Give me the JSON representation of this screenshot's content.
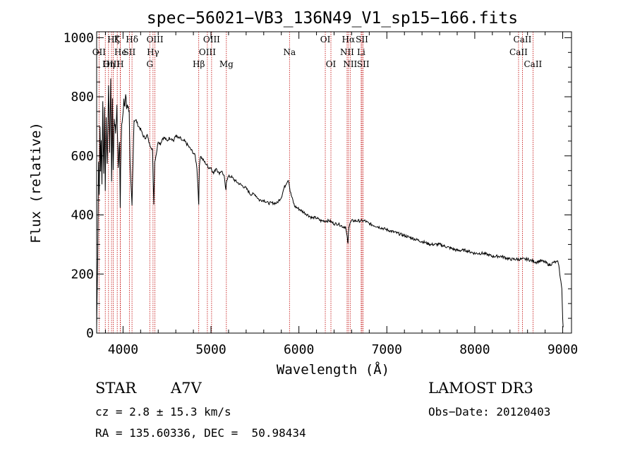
{
  "chart_data": {
    "type": "line",
    "title": "spec−56021−VB3_136N49_V1_sp15−166.fits",
    "xlabel": "Wavelength (Å)",
    "ylabel": "Flux (relative)",
    "xlim": [
      3700,
      9100
    ],
    "ylim": [
      0,
      1020
    ],
    "x_ticks": [
      4000,
      5000,
      6000,
      7000,
      8000,
      9000
    ],
    "y_ticks": [
      0,
      200,
      400,
      600,
      800,
      1000
    ],
    "series": [
      {
        "name": "flux",
        "x": [
          3700,
          3712,
          3722,
          3730,
          3738,
          3745,
          3752,
          3760,
          3770,
          3780,
          3790,
          3798,
          3808,
          3820,
          3835,
          3848,
          3860,
          3870,
          3880,
          3888,
          3900,
          3915,
          3930,
          3945,
          3960,
          3968,
          3972,
          3985,
          4000,
          4010,
          4020,
          4030,
          4040,
          4050,
          4060,
          4070,
          4080,
          4092,
          4102,
          4110,
          4125,
          4150,
          4175,
          4200,
          4225,
          4250,
          4275,
          4300,
          4320,
          4335,
          4342,
          4350,
          4360,
          4380,
          4400,
          4425,
          4450,
          4475,
          4500,
          4525,
          4550,
          4575,
          4600,
          4625,
          4650,
          4675,
          4700,
          4725,
          4750,
          4775,
          4800,
          4820,
          4840,
          4855,
          4861,
          4868,
          4880,
          4900,
          4925,
          4950,
          4975,
          5000,
          5030,
          5060,
          5090,
          5120,
          5150,
          5170,
          5175,
          5180,
          5200,
          5230,
          5260,
          5300,
          5350,
          5400,
          5450,
          5500,
          5550,
          5600,
          5650,
          5700,
          5750,
          5800,
          5830,
          5860,
          5880,
          5893,
          5900,
          5920,
          5950,
          6000,
          6050,
          6100,
          6150,
          6200,
          6250,
          6300,
          6350,
          6400,
          6450,
          6500,
          6530,
          6550,
          6558,
          6563,
          6568,
          6580,
          6600,
          6650,
          6700,
          6750,
          6800,
          6900,
          7000,
          7100,
          7200,
          7300,
          7400,
          7500,
          7600,
          7700,
          7800,
          7900,
          8000,
          8100,
          8200,
          8300,
          8400,
          8500,
          8550,
          8600,
          8650,
          8700,
          8750,
          8800,
          8850,
          8900,
          8950,
          8990,
          9000,
          9005
        ],
        "values": [
          20,
          250,
          580,
          480,
          700,
          560,
          650,
          510,
          780,
          540,
          760,
          480,
          740,
          560,
          840,
          620,
          860,
          520,
          780,
          560,
          730,
          680,
          760,
          560,
          650,
          420,
          560,
          720,
          740,
          780,
          770,
          810,
          760,
          780,
          760,
          760,
          560,
          480,
          430,
          540,
          720,
          720,
          700,
          690,
          670,
          660,
          670,
          640,
          630,
          620,
          520,
          440,
          580,
          610,
          650,
          640,
          660,
          660,
          650,
          660,
          660,
          650,
          670,
          660,
          660,
          650,
          650,
          640,
          630,
          620,
          610,
          600,
          560,
          480,
          430,
          570,
          600,
          590,
          580,
          570,
          560,
          560,
          540,
          560,
          540,
          550,
          530,
          480,
          510,
          520,
          530,
          530,
          520,
          510,
          500,
          490,
          470,
          470,
          450,
          450,
          440,
          440,
          440,
          460,
          490,
          510,
          520,
          500,
          480,
          460,
          430,
          420,
          410,
          400,
          390,
          390,
          380,
          380,
          380,
          370,
          370,
          360,
          360,
          320,
          300,
          340,
          360,
          370,
          380,
          380,
          380,
          380,
          370,
          360,
          350,
          340,
          330,
          320,
          310,
          300,
          300,
          290,
          280,
          280,
          270,
          270,
          260,
          260,
          250,
          250,
          250,
          250,
          245,
          240,
          245,
          240,
          230,
          240,
          240,
          150,
          50,
          20
        ]
      }
    ],
    "lines_upper_labels": [
      {
        "text": "Hζ",
        "x": 3889,
        "row": 1
      },
      {
        "text": "K",
        "x": 3934,
        "row": 1
      },
      {
        "text": "Hδ",
        "x": 4102,
        "row": 1
      },
      {
        "text": "OIII",
        "x": 4363,
        "row": 1
      },
      {
        "text": "OIII",
        "x": 5007,
        "row": 1
      },
      {
        "text": "OI",
        "x": 6300,
        "row": 1
      },
      {
        "text": "Hα",
        "x": 6563,
        "row": 1
      },
      {
        "text": "SII",
        "x": 6717,
        "row": 1
      },
      {
        "text": "CaII",
        "x": 8542,
        "row": 1
      },
      {
        "text": "OII",
        "x": 3727,
        "row": 2
      },
      {
        "text": "He",
        "x": 3970,
        "row": 2
      },
      {
        "text": "SII",
        "x": 4072,
        "row": 2
      },
      {
        "text": "Hγ",
        "x": 4341,
        "row": 2
      },
      {
        "text": "OIII",
        "x": 4959,
        "row": 2
      },
      {
        "text": "Na",
        "x": 5893,
        "row": 2
      },
      {
        "text": "NII",
        "x": 6548,
        "row": 2
      },
      {
        "text": "Li",
        "x": 6708,
        "row": 2
      },
      {
        "text": "CaII",
        "x": 8498,
        "row": 2
      },
      {
        "text": "OIII",
        "x": 3869,
        "row": 3
      },
      {
        "text": "Hη",
        "x": 3835,
        "row": 3
      },
      {
        "text": "H",
        "x": 3968,
        "row": 3
      },
      {
        "text": "G",
        "x": 4304,
        "row": 3
      },
      {
        "text": "Hβ",
        "x": 4861,
        "row": 3
      },
      {
        "text": "Mg",
        "x": 5175,
        "row": 3
      },
      {
        "text": "OI",
        "x": 6364,
        "row": 3
      },
      {
        "text": "NII",
        "x": 6583,
        "row": 3
      },
      {
        "text": "SII",
        "x": 6731,
        "row": 3
      },
      {
        "text": "CaII",
        "x": 8662,
        "row": 3
      }
    ],
    "marker_lines": [
      3727,
      3798,
      3835,
      3869,
      3889,
      3934,
      3968,
      3970,
      4072,
      4102,
      4304,
      4341,
      4363,
      4861,
      4959,
      5007,
      5175,
      5893,
      6300,
      6364,
      6548,
      6563,
      6583,
      6708,
      6717,
      6731,
      8498,
      8542,
      8662
    ]
  },
  "info": {
    "object_class": "STAR",
    "subclass": "A7V",
    "survey": "LAMOST DR3",
    "cz": "cz = 2.8 ± 15.3 km/s",
    "obs_date": "Obs−Date: 20120403",
    "coords": "RA = 135.60336, DEC =  50.98434"
  },
  "colors": {
    "line": "#000000",
    "marker": "#c00000",
    "axis": "#000000"
  }
}
